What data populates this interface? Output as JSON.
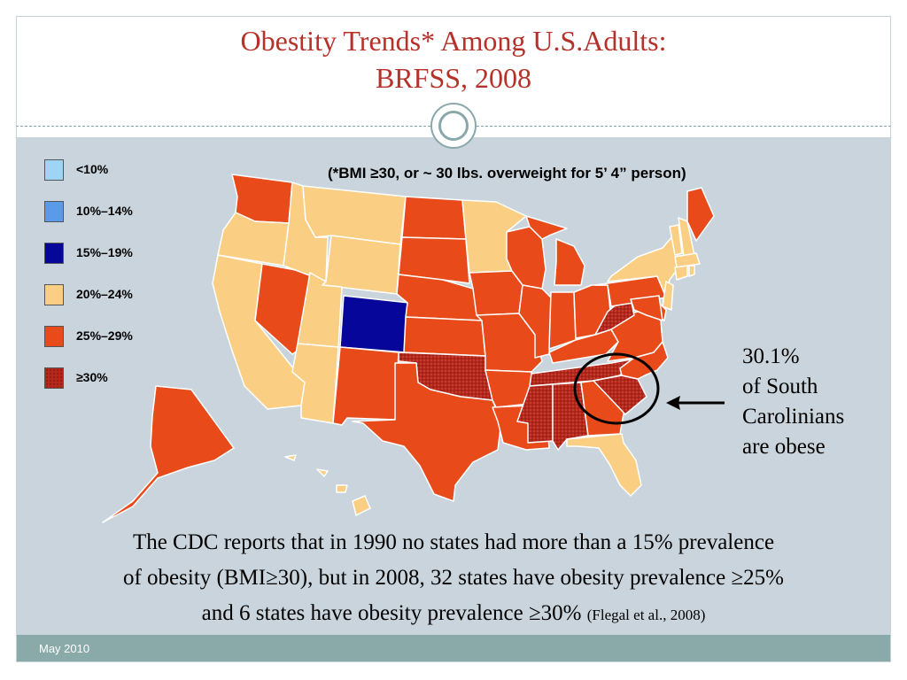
{
  "title": {
    "line1": "Obestity Trends* Among U.S.Adults:",
    "line2": "BRFSS, 2008"
  },
  "note": "(*BMI ≥30, or ~ 30 lbs. overweight for 5’ 4” person)",
  "legend": [
    {
      "label": "<10%",
      "color": "#9fd4f5"
    },
    {
      "label": "10%–14%",
      "color": "#5a9ae8"
    },
    {
      "label": "15%–19%",
      "color": "#06069a"
    },
    {
      "label": "20%–24%",
      "color": "#fbcf83"
    },
    {
      "label": "25%–29%",
      "color": "#e84a1a"
    },
    {
      "label": "≥30%",
      "color": "#b5271b"
    }
  ],
  "callout": {
    "value": "30.1%",
    "line2": "of South",
    "line3": "Carolinians",
    "line4": "are obese"
  },
  "body": {
    "line1": "The CDC reports that in 1990 no states had more than a 15% prevalence",
    "line2": "of obesity (BMI≥30), but in 2008, 32 states have obesity prevalence ≥25%",
    "line3": "and 6 states have obesity prevalence ≥30%",
    "citation": "(Flegal et al., 2008)"
  },
  "footer": {
    "date": "May 2010"
  },
  "map": {
    "highlighted_state": "South Carolina",
    "states": {
      "Washington": "25-29",
      "Oregon": "20-24",
      "California": "20-24",
      "Nevada": "25-29",
      "Idaho": "20-24",
      "Montana": "20-24",
      "Wyoming": "20-24",
      "Utah": "20-24",
      "Arizona": "20-24",
      "Colorado": "15-19",
      "New Mexico": "25-29",
      "North Dakota": "25-29",
      "South Dakota": "25-29",
      "Nebraska": "25-29",
      "Kansas": "25-29",
      "Oklahoma": ">=30",
      "Texas": "25-29",
      "Minnesota": "20-24",
      "Iowa": "25-29",
      "Missouri": "25-29",
      "Arkansas": "25-29",
      "Louisiana": "25-29",
      "Wisconsin": "25-29",
      "Illinois": "25-29",
      "Michigan": "25-29",
      "Indiana": "25-29",
      "Ohio": "25-29",
      "Kentucky": "25-29",
      "Tennessee": ">=30",
      "Mississippi": ">=30",
      "Alabama": ">=30",
      "Georgia": "25-29",
      "Florida": "20-24",
      "South Carolina": ">=30",
      "North Carolina": "25-29",
      "Virginia": "25-29",
      "West Virginia": ">=30",
      "Pennsylvania": "25-29",
      "New York": "20-24",
      "Vermont": "20-24",
      "New Hampshire": "20-24",
      "Maine": "25-29",
      "Massachusetts": "20-24",
      "Connecticut": "20-24",
      "Rhode Island": "20-24",
      "New Jersey": "20-24",
      "Delaware": "25-29",
      "Maryland": "25-29",
      "Alaska": "25-29",
      "Hawaii": "20-24"
    }
  }
}
